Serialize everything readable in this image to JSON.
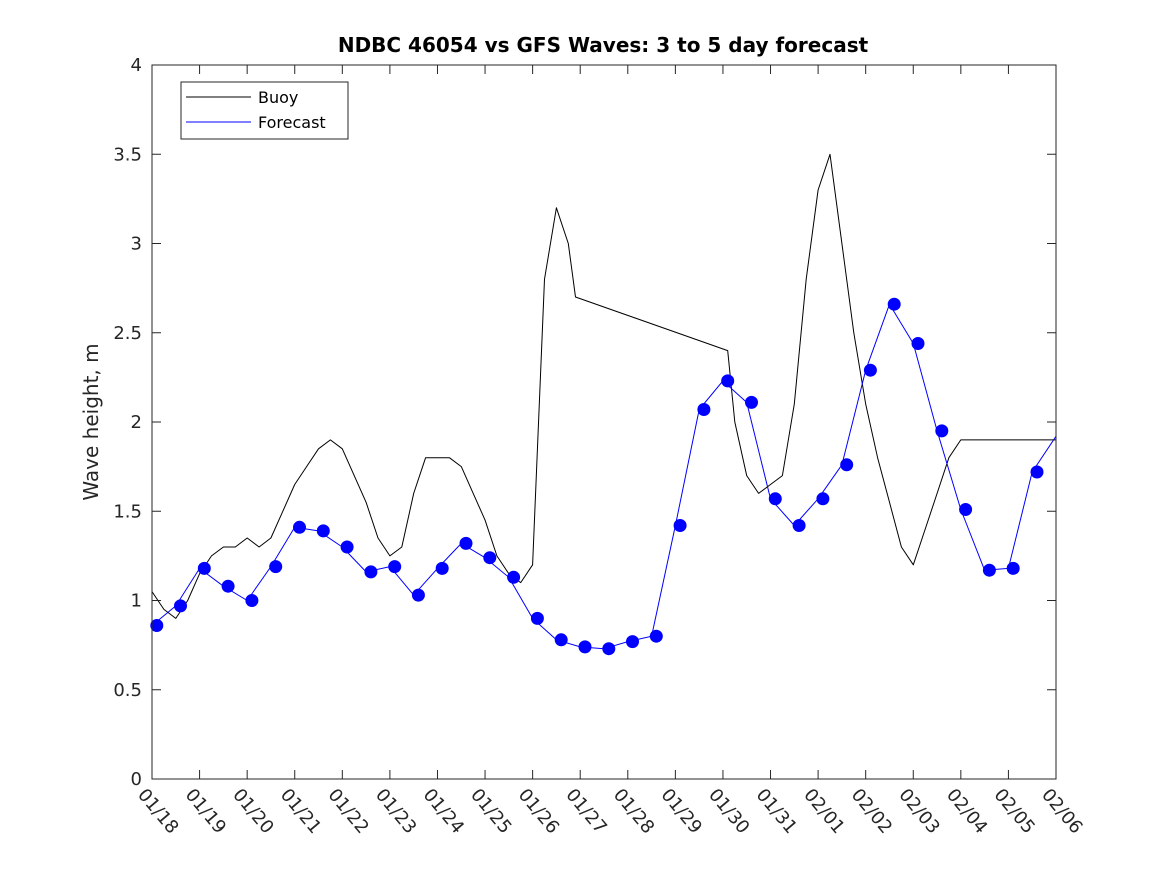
{
  "chart_data": {
    "type": "line",
    "title": "NDBC 46054 vs GFS Waves: 3 to 5 day forecast",
    "xlabel": "",
    "ylabel": "Wave height, m",
    "ylim": [
      0,
      4
    ],
    "yticks": [
      0,
      0.5,
      1,
      1.5,
      2,
      2.5,
      3,
      3.5,
      4
    ],
    "ytick_labels": [
      "0",
      "0.5",
      "1",
      "1.5",
      "2",
      "2.5",
      "3",
      "3.5",
      "4"
    ],
    "xlim_days": [
      0,
      19
    ],
    "xtick_labels": [
      "01/18",
      "01/19",
      "01/20",
      "01/21",
      "01/22",
      "01/23",
      "01/24",
      "01/25",
      "01/26",
      "01/27",
      "01/28",
      "01/29",
      "01/30",
      "01/31",
      "02/01",
      "02/02",
      "02/03",
      "02/04",
      "02/05",
      "02/06"
    ],
    "legend": {
      "position": "top-left",
      "entries": [
        "Buoy",
        "Forecast"
      ]
    },
    "colors": {
      "buoy": "#000000",
      "forecast": "#0000ff"
    },
    "series": [
      {
        "name": "Buoy",
        "x": [
          0,
          0.25,
          0.5,
          0.75,
          1,
          1.25,
          1.5,
          1.75,
          2,
          2.25,
          2.5,
          2.75,
          3,
          3.25,
          3.5,
          3.75,
          4,
          4.25,
          4.5,
          4.75,
          5,
          5.25,
          5.5,
          5.75,
          6,
          6.25,
          6.5,
          6.75,
          7,
          7.25,
          7.5,
          7.75,
          8,
          8.25,
          8.5,
          8.75,
          8.9,
          12.1,
          12.25,
          12.5,
          12.75,
          13,
          13.25,
          13.5,
          13.75,
          14,
          14.25,
          14.5,
          14.75,
          15,
          15.25,
          15.5,
          15.75,
          16,
          16.25,
          16.5,
          16.75,
          17,
          17.25,
          17.5,
          17.75,
          18,
          18.25,
          18.5,
          18.75,
          19
        ],
        "y": [
          1.05,
          0.95,
          0.9,
          1.0,
          1.15,
          1.25,
          1.3,
          1.3,
          1.35,
          1.3,
          1.35,
          1.5,
          1.65,
          1.75,
          1.85,
          1.9,
          1.85,
          1.7,
          1.55,
          1.35,
          1.25,
          1.3,
          1.6,
          1.8,
          1.8,
          1.8,
          1.75,
          1.6,
          1.45,
          1.25,
          1.15,
          1.1,
          1.2,
          2.8,
          3.2,
          3.0,
          2.7,
          2.4,
          2.0,
          1.7,
          1.6,
          1.65,
          1.7,
          2.1,
          2.8,
          3.3,
          3.5,
          3.0,
          2.5,
          2.1,
          1.8,
          1.55,
          1.3,
          1.2,
          1.4,
          1.6,
          1.8,
          1.9,
          1.9,
          1.9,
          1.9,
          1.9,
          1.9,
          1.9,
          1.9,
          1.9
        ]
      },
      {
        "name": "Forecast",
        "x": [
          0,
          0.5,
          1,
          1.5,
          2,
          2.5,
          3,
          3.5,
          4,
          4.5,
          5,
          5.5,
          6,
          6.5,
          7,
          7.5,
          8,
          8.5,
          9,
          9.5,
          10,
          10.5,
          11,
          11.5,
          12,
          12.5,
          13,
          13.5,
          14,
          14.5,
          15,
          15.5,
          16,
          16.5,
          17,
          17.5,
          18,
          18.5,
          19
        ],
        "y": [
          0.86,
          0.97,
          1.18,
          1.08,
          1.0,
          1.19,
          1.41,
          1.39,
          1.3,
          1.16,
          1.19,
          1.03,
          1.18,
          1.32,
          1.24,
          1.13,
          0.9,
          0.78,
          0.74,
          0.73,
          0.77,
          0.8,
          1.42,
          2.07,
          2.23,
          2.11,
          1.57,
          1.42,
          1.57,
          1.76,
          2.29,
          2.66,
          2.44,
          1.95,
          1.51,
          1.17,
          1.18,
          1.72,
          1.92
        ]
      }
    ],
    "markers": {
      "name": "Forecast",
      "x": [
        0.1,
        0.6,
        1.1,
        1.6,
        2.1,
        2.6,
        3.1,
        3.6,
        4.1,
        4.6,
        5.1,
        5.6,
        6.1,
        6.6,
        7.1,
        7.6,
        8.1,
        8.6,
        9.1,
        9.6,
        10.1,
        10.6,
        11.1,
        11.6,
        12.1,
        12.6,
        13.1,
        13.6,
        14.1,
        14.6,
        15.1,
        15.6,
        16.1,
        16.6,
        17.1,
        17.6,
        18.1,
        18.6
      ],
      "y": [
        0.86,
        0.97,
        1.18,
        1.08,
        1.0,
        1.19,
        1.41,
        1.39,
        1.3,
        1.16,
        1.19,
        1.03,
        1.18,
        1.32,
        1.24,
        1.13,
        0.9,
        0.78,
        0.74,
        0.73,
        0.77,
        0.8,
        1.42,
        2.07,
        2.23,
        2.11,
        1.57,
        1.42,
        1.57,
        1.76,
        2.29,
        2.66,
        2.44,
        1.95,
        1.51,
        1.17,
        1.18,
        1.72
      ]
    }
  }
}
